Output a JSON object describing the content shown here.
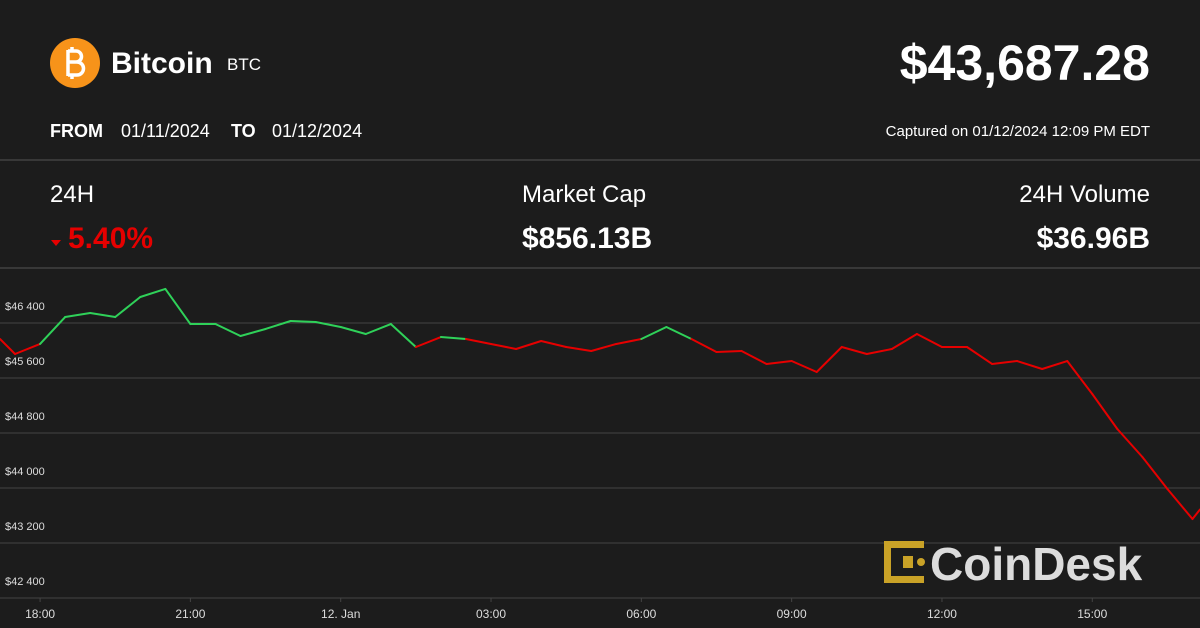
{
  "header": {
    "name": "Bitcoin",
    "symbol": "BTC",
    "price": "$43,687.28",
    "from_label": "FROM",
    "from_date": "01/11/2024",
    "to_label": "TO",
    "to_date": "01/12/2024",
    "captured": "Captured on 01/12/2024 12:09 PM EDT"
  },
  "stats": [
    {
      "label": "24H",
      "value": "5.40%"
    },
    {
      "label": "Market Cap",
      "value": "$856.13B"
    },
    {
      "label": "24H Volume",
      "value": "$36.96B"
    }
  ],
  "watermark": "CoinDesk",
  "chart_data": {
    "type": "line",
    "x": [
      -0.8,
      -0.5,
      0,
      0.5,
      1,
      1.5,
      2,
      2.5,
      3,
      3.5,
      4,
      4.5,
      5,
      5.5,
      6,
      6.5,
      7,
      7.5,
      8,
      8.5,
      9,
      9.5,
      10,
      10.5,
      11,
      11.5,
      12,
      12.5,
      13,
      13.5,
      14,
      14.5,
      15,
      15.5,
      16,
      16.5,
      17,
      17.5,
      18,
      18.5,
      19,
      19.5,
      20,
      20.5,
      21,
      21.5,
      22,
      22.5,
      23,
      23.15
    ],
    "values": [
      46167,
      45949,
      46095,
      46487,
      46545,
      46487,
      46778,
      46895,
      46385,
      46385,
      46211,
      46313,
      46429,
      46415,
      46342,
      46240,
      46385,
      46051,
      46196,
      46167,
      46095,
      46022,
      46138,
      46051,
      45993,
      46095,
      46167,
      46342,
      46167,
      45978,
      45993,
      45804,
      45847,
      45687,
      46051,
      45949,
      46022,
      46240,
      46051,
      46051,
      45804,
      45847,
      45731,
      45847,
      45367,
      44858,
      44451,
      43985,
      43549,
      43687
    ],
    "up_color": "#2fd159",
    "down_color": "#e60000",
    "xlim": [
      -0.8,
      23.15
    ],
    "xticks": [
      {
        "value": 0,
        "label": "18:00"
      },
      {
        "value": 3,
        "label": "21:00"
      },
      {
        "value": 6,
        "label": "12. Jan"
      },
      {
        "value": 9,
        "label": "03:00"
      },
      {
        "value": 12,
        "label": "06:00"
      },
      {
        "value": 15,
        "label": "09:00"
      },
      {
        "value": 18,
        "label": "12:00"
      },
      {
        "value": 21,
        "label": "15:00"
      }
    ],
    "ylim": [
      42400,
      47200
    ],
    "yticks": [
      {
        "value": 42400,
        "label": "$42 400"
      },
      {
        "value": 43200,
        "label": "$43 200"
      },
      {
        "value": 44000,
        "label": "$44 000"
      },
      {
        "value": 44800,
        "label": "$44 800"
      },
      {
        "value": 45600,
        "label": "$45 600"
      },
      {
        "value": 46400,
        "label": "$46 400"
      }
    ],
    "grid": true
  }
}
